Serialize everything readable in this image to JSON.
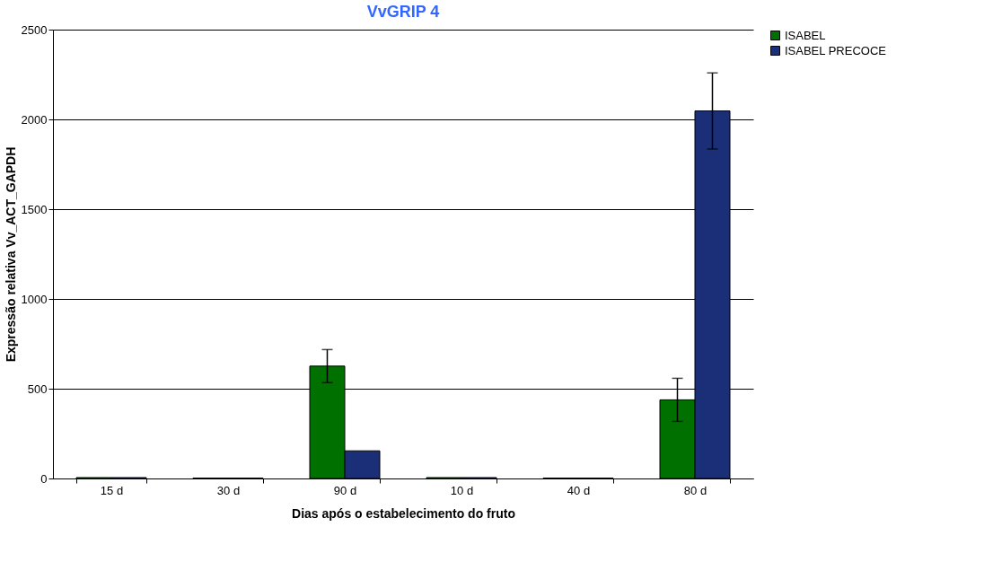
{
  "chart_data": {
    "type": "bar",
    "title": "VvGRIP 4",
    "xlabel": "Dias após o estabelecimento do fruto",
    "ylabel": "Expressão relativa Vv_ACT_GAPDH",
    "categories": [
      "15 d",
      "30 d",
      "90 d",
      "10 d",
      "40 d",
      "80 d"
    ],
    "series": [
      {
        "name": "ISABEL",
        "color": "#007000",
        "values": [
          5,
          2,
          626,
          5,
          2,
          438
        ],
        "errors": [
          null,
          null,
          92,
          null,
          null,
          120
        ]
      },
      {
        "name": "ISABEL PRECOCE",
        "color": "#1a2f78",
        "values": [
          5,
          2,
          154,
          5,
          2,
          2047
        ],
        "errors": [
          null,
          null,
          null,
          null,
          null,
          212
        ]
      }
    ],
    "ylim": [
      0,
      2500
    ],
    "yticks": [
      0,
      500,
      1000,
      1500,
      2000,
      2500
    ],
    "grid": "y",
    "legend": "right"
  }
}
